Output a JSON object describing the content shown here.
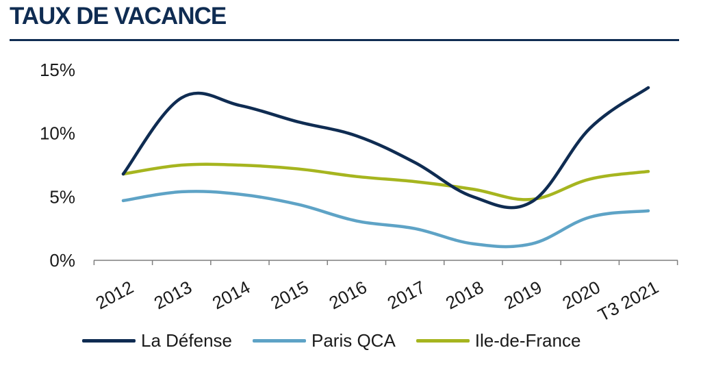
{
  "chart_data": {
    "type": "line",
    "title": "TAUX DE VACANCE",
    "xlabel": "",
    "ylabel": "",
    "categories": [
      "2012",
      "2013",
      "2014",
      "2015",
      "2016",
      "2017",
      "2018",
      "2019",
      "2020",
      "T3 2021"
    ],
    "ylim": [
      0,
      15
    ],
    "yticks": [
      "0%",
      "5%",
      "10%",
      "15%"
    ],
    "grid": false,
    "legend_position": "bottom",
    "series": [
      {
        "name": "La Défense",
        "color": "#0f2c52",
        "values": [
          6.8,
          12.8,
          12.2,
          10.9,
          9.8,
          7.7,
          5.0,
          4.6,
          10.4,
          13.6
        ]
      },
      {
        "name": "Paris QCA",
        "color": "#5ea3c6",
        "values": [
          4.7,
          5.4,
          5.2,
          4.4,
          3.1,
          2.5,
          1.3,
          1.3,
          3.4,
          3.9
        ]
      },
      {
        "name": "Ile-de-France",
        "color": "#a6b51f",
        "values": [
          6.8,
          7.5,
          7.5,
          7.2,
          6.6,
          6.2,
          5.6,
          4.8,
          6.4,
          7.0
        ]
      }
    ]
  }
}
